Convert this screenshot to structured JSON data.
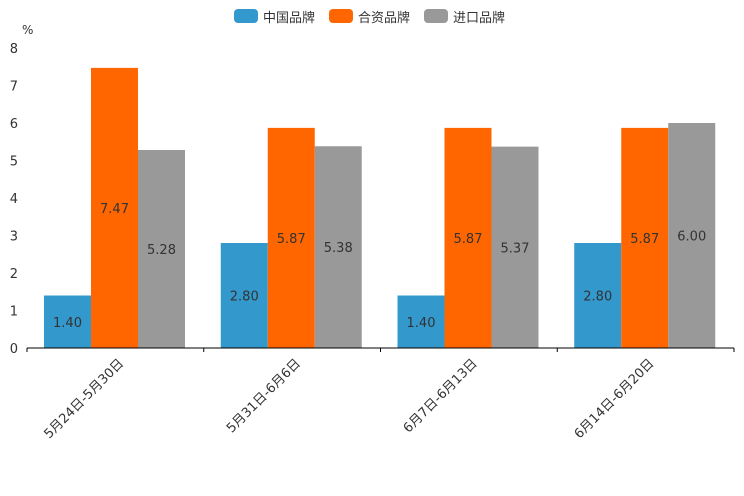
{
  "chart_data": {
    "type": "bar",
    "yunit": "%",
    "ylim": [
      0,
      8
    ],
    "yticks": [
      "0",
      "1",
      "2",
      "3",
      "4",
      "5",
      "6",
      "7",
      "8"
    ],
    "categories": [
      "5月24日-5月30日",
      "5月31日-6月6日",
      "6月7日-6月13日",
      "6月14日-6月20日"
    ],
    "series": [
      {
        "name": "中国品牌",
        "color": "#3398CC",
        "values": [
          1.4,
          2.8,
          1.4,
          2.8
        ],
        "labels": [
          "1.40",
          "2.80",
          "1.40",
          "2.80"
        ]
      },
      {
        "name": "合资品牌",
        "color": "#FF6600",
        "values": [
          7.47,
          5.87,
          5.87,
          5.87
        ],
        "labels": [
          "7.47",
          "5.87",
          "5.87",
          "5.87"
        ]
      },
      {
        "name": "进口品牌",
        "color": "#999999",
        "values": [
          5.28,
          5.38,
          5.37,
          6.0
        ],
        "labels": [
          "5.28",
          "5.38",
          "5.37",
          "6.00"
        ]
      }
    ]
  }
}
